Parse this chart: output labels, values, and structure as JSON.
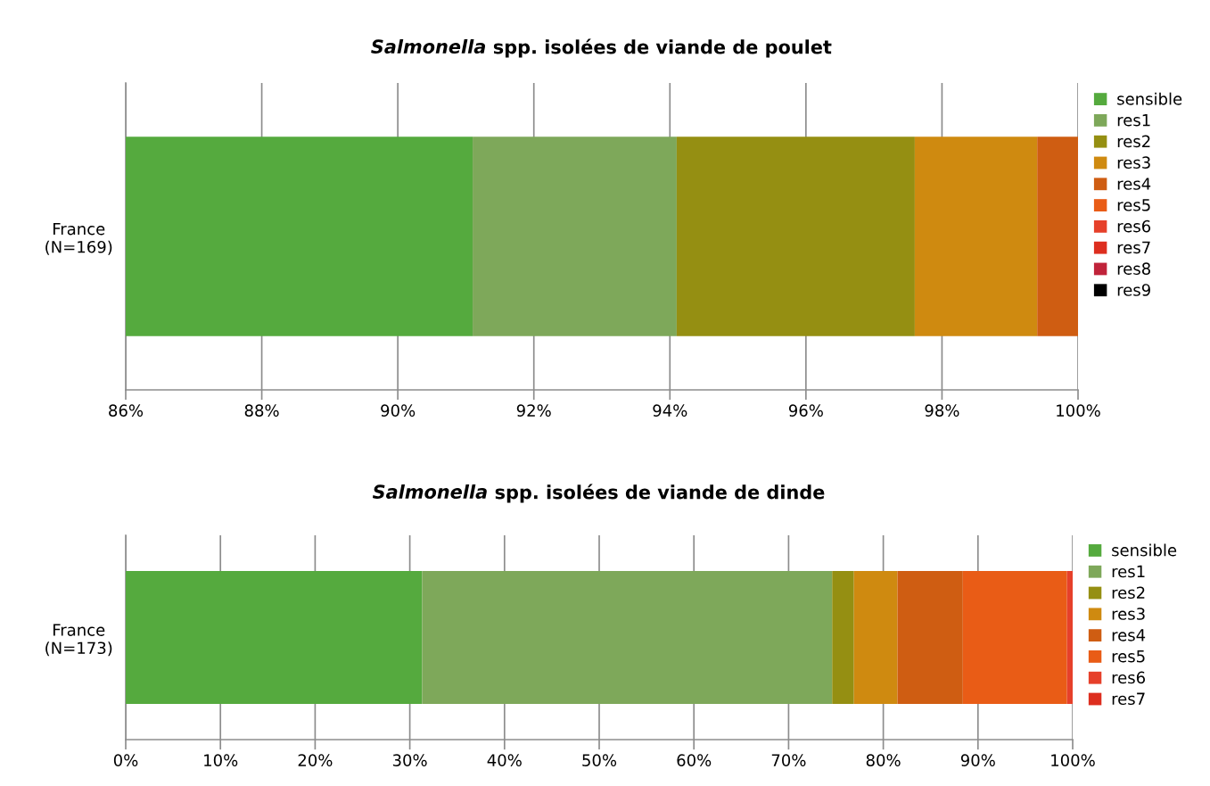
{
  "chart_data": [
    {
      "type": "bar",
      "orientation": "horizontal",
      "stacked": true,
      "title": "Salmonella spp. isolées de viande de poulet",
      "categories": [
        "France\n(N=169)"
      ],
      "xlim": [
        86,
        100
      ],
      "xticks": [
        {
          "value": 86,
          "label": "86%"
        },
        {
          "value": 88,
          "label": "88%"
        },
        {
          "value": 90,
          "label": "90%"
        },
        {
          "value": 92,
          "label": "92%"
        },
        {
          "value": 94,
          "label": "94%"
        },
        {
          "value": 96,
          "label": "96%"
        },
        {
          "value": 98,
          "label": "98%"
        },
        {
          "value": 100,
          "label": "100%"
        }
      ],
      "grid": "x",
      "legend": "right",
      "series": [
        {
          "name": "sensible",
          "color": "#55aa3e",
          "values": [
            91.1
          ]
        },
        {
          "name": "res1",
          "color": "#7ea85a",
          "base": [
            91.1
          ],
          "values": [
            3.0
          ]
        },
        {
          "name": "res2",
          "color": "#958f12",
          "base": [
            94.1
          ],
          "values": [
            3.5
          ]
        },
        {
          "name": "res3",
          "color": "#cf8a10",
          "base": [
            97.6
          ],
          "values": [
            1.8
          ]
        },
        {
          "name": "res4",
          "color": "#cf5d12",
          "base": [
            99.4
          ],
          "values": [
            0.6
          ]
        },
        {
          "name": "res5",
          "color": "#e95c16",
          "values": [
            null
          ]
        },
        {
          "name": "res6",
          "color": "#e6402a",
          "values": [
            null
          ]
        },
        {
          "name": "res7",
          "color": "#dd2e1f",
          "values": [
            null
          ]
        },
        {
          "name": "res8",
          "color": "#c0233a",
          "values": [
            null
          ]
        },
        {
          "name": "res9",
          "color": "#000000",
          "values": [
            null
          ]
        }
      ]
    },
    {
      "type": "bar",
      "orientation": "horizontal",
      "stacked": true,
      "title": "Salmonella spp. isolées de viande de dinde",
      "categories": [
        "France\n(N=173)"
      ],
      "xlim": [
        0,
        100
      ],
      "xticks": [
        {
          "value": 0,
          "label": "0%"
        },
        {
          "value": 10,
          "label": "10%"
        },
        {
          "value": 20,
          "label": "20%"
        },
        {
          "value": 30,
          "label": "30%"
        },
        {
          "value": 40,
          "label": "40%"
        },
        {
          "value": 50,
          "label": "50%"
        },
        {
          "value": 60,
          "label": "60%"
        },
        {
          "value": 70,
          "label": "70%"
        },
        {
          "value": 80,
          "label": "80%"
        },
        {
          "value": 90,
          "label": "90%"
        },
        {
          "value": 100,
          "label": "100%"
        }
      ],
      "grid": "x",
      "legend": "right",
      "series": [
        {
          "name": "sensible",
          "color": "#55aa3e",
          "values": [
            31.3
          ]
        },
        {
          "name": "res1",
          "color": "#7ea85a",
          "values": [
            43.3
          ]
        },
        {
          "name": "res2",
          "color": "#958f12",
          "values": [
            2.3
          ]
        },
        {
          "name": "res3",
          "color": "#cf8a10",
          "values": [
            4.6
          ]
        },
        {
          "name": "res4",
          "color": "#cf5d12",
          "values": [
            6.9
          ]
        },
        {
          "name": "res5",
          "color": "#e95c16",
          "values": [
            11.0
          ]
        },
        {
          "name": "res6",
          "color": "#e6402a",
          "values": [
            0.6
          ]
        },
        {
          "name": "res7",
          "color": "#dd2e1f",
          "values": [
            null
          ]
        }
      ]
    }
  ]
}
